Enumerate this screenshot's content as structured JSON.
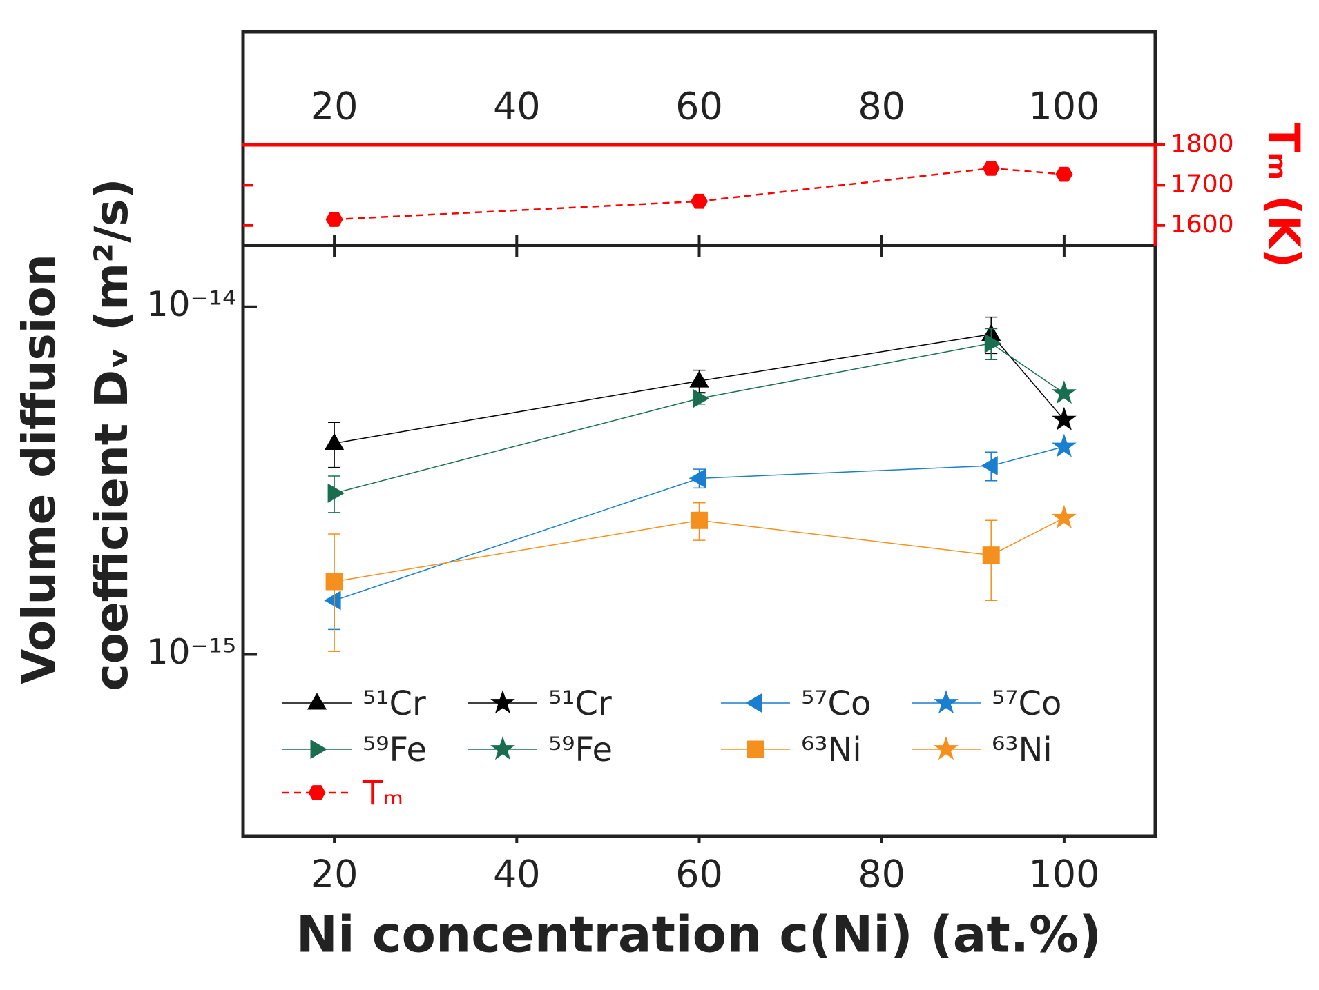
{
  "chart_data": [
    {
      "type": "line",
      "ylabel": "Tₘ (K)",
      "xlim": [
        10,
        110
      ],
      "xticks": [
        20,
        40,
        60,
        80,
        100
      ],
      "ylim": [
        1550,
        1800
      ],
      "yticks": [
        1600,
        1700,
        1800
      ],
      "axis_color": "#ff0000",
      "series": [
        {
          "name": "Tₘ",
          "color": "#ff0000",
          "marker": "hexagon",
          "dash": true,
          "x": [
            20,
            60,
            92,
            100
          ],
          "values": [
            1615,
            1660,
            1742,
            1727
          ]
        }
      ]
    },
    {
      "type": "line",
      "xlabel": "Ni concentration c(Ni) (at.%)",
      "ylabel": [
        "Volume diffusion",
        "coefficient Dᵥ (m²/s)"
      ],
      "xlim": [
        10,
        110
      ],
      "xticks": [
        20,
        40,
        60,
        80,
        100
      ],
      "yscale": "log",
      "ylim": [
        3e-16,
        1.5e-14
      ],
      "yticks": [
        {
          "value": 1e-14,
          "label": "10⁻¹⁴"
        },
        {
          "value": 1e-15,
          "label": "10⁻¹⁵"
        }
      ],
      "series": [
        {
          "name": "⁵¹Cr",
          "color": "#000000",
          "marker": "triangle-up",
          "x": [
            20,
            60,
            92
          ],
          "values": [
            4.05e-15,
            6.12e-15,
            8.34e-15
          ],
          "errors": [
            6e-16,
            4.5e-16,
            1e-15
          ]
        },
        {
          "name": "⁵¹Cr",
          "color": "#000000",
          "marker": "star",
          "x": [
            100
          ],
          "values": [
            4.73e-15
          ]
        },
        {
          "name": "⁵⁷Co",
          "color": "#1a7fcf",
          "marker": "triangle-left",
          "x": [
            20,
            60,
            92
          ],
          "values": [
            1.43e-15,
            3.21e-15,
            3.49e-15
          ],
          "errors": [
            2.5e-16,
            2e-16,
            3.3e-16
          ]
        },
        {
          "name": "⁵⁷Co",
          "color": "#1a7fcf",
          "marker": "star",
          "x": [
            100
          ],
          "values": [
            3.96e-15
          ]
        },
        {
          "name": "⁵⁹Fe",
          "color": "#1a6e50",
          "marker": "triangle-right",
          "x": [
            20,
            60,
            92
          ],
          "values": [
            2.91e-15,
            5.45e-15,
            7.85e-15
          ],
          "errors": [
            3.5e-16,
            2e-16,
            8e-16
          ]
        },
        {
          "name": "⁵⁹Fe",
          "color": "#1a6e50",
          "marker": "star",
          "x": [
            100
          ],
          "values": [
            5.64e-15
          ]
        },
        {
          "name": "⁶³Ni",
          "color": "#f5901e",
          "marker": "square",
          "x": [
            20,
            60,
            92
          ],
          "values": [
            1.62e-15,
            2.43e-15,
            1.93e-15
          ],
          "errors": [
            6e-16,
            3e-16,
            5e-16
          ]
        },
        {
          "name": "⁶³Ni",
          "color": "#f5901e",
          "marker": "star",
          "x": [
            100
          ],
          "values": [
            2.47e-15
          ]
        }
      ]
    }
  ]
}
